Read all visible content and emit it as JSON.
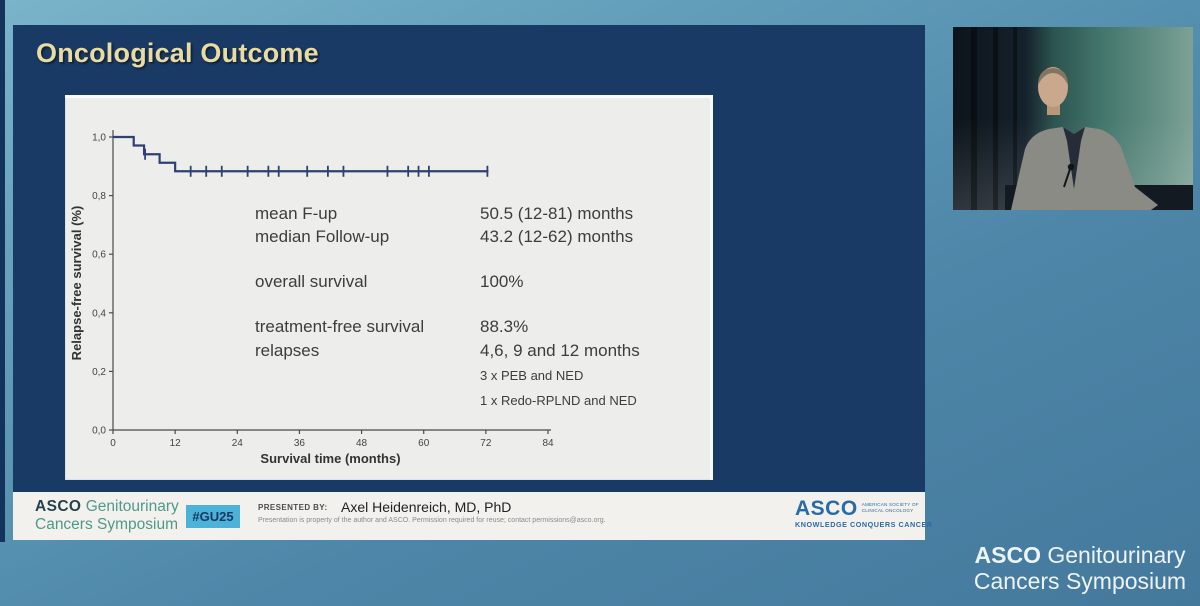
{
  "slide": {
    "title": "Oncological Outcome",
    "stats": [
      {
        "label": "mean F-up",
        "value": "50.5 (12-81) months"
      },
      {
        "label": "median Follow-up",
        "value": "43.2 (12-62) months"
      },
      {
        "label": "overall survival",
        "value": "100%"
      },
      {
        "label": "treatment-free survival",
        "value": "88.3%"
      },
      {
        "label": "relapses",
        "value": "4,6, 9 and 12 months"
      }
    ],
    "notes": [
      "3 x PEB and NED",
      "1 x Redo-RPLND and NED"
    ],
    "footer": {
      "logo_left": {
        "brand": "ASCO",
        "brand_suffix": "Genitourinary",
        "line2": "Cancers Symposium"
      },
      "hashtag": "#GU25",
      "presented_by_label": "PRESENTED BY:",
      "presenter": "Axel Heidenreich, MD, PhD",
      "fine_print": "Presentation is property of the author and ASCO. Permission required for reuse; contact permissions@asco.org.",
      "logo_right": {
        "brand": "ASCO",
        "society_line1": "AMERICAN SOCIETY OF",
        "society_line2": "CLINICAL ONCOLOGY",
        "tagline": "KNOWLEDGE CONQUERS CANCER"
      }
    }
  },
  "chart_data": {
    "type": "line",
    "subtype": "kaplan-meier-step",
    "title": "",
    "xlabel": "Survival time (months)",
    "ylabel": "Relapse-free survival (%)",
    "xlim": [
      0,
      84
    ],
    "ylim": [
      0.0,
      1.0
    ],
    "xticks": [
      0,
      12,
      24,
      36,
      48,
      60,
      72,
      84
    ],
    "xtick_labels": [
      "0",
      "12",
      "24",
      "36",
      "48",
      "60",
      "72",
      "84"
    ],
    "yticks": [
      0.0,
      0.2,
      0.4,
      0.6,
      0.8,
      1.0
    ],
    "ytick_labels": [
      "0,0",
      "0,2",
      "0,4",
      "0,6",
      "0,8",
      "1,0"
    ],
    "grid": false,
    "legend": "none",
    "series": [
      {
        "name": "relapse-free survival",
        "color": "#2e4170",
        "steps": [
          [
            0,
            1.0
          ],
          [
            4,
            1.0
          ],
          [
            4,
            0.971
          ],
          [
            6,
            0.971
          ],
          [
            6,
            0.941
          ],
          [
            9,
            0.941
          ],
          [
            9,
            0.912
          ],
          [
            12,
            0.912
          ],
          [
            12,
            0.883
          ],
          [
            72.5,
            0.883
          ]
        ],
        "censor_marks": [
          [
            6.2,
            0.941
          ],
          [
            15,
            0.883
          ],
          [
            18,
            0.883
          ],
          [
            21,
            0.883
          ],
          [
            26,
            0.883
          ],
          [
            30,
            0.883
          ],
          [
            32,
            0.883
          ],
          [
            37.5,
            0.883
          ],
          [
            41.5,
            0.883
          ],
          [
            44.5,
            0.883
          ],
          [
            53,
            0.883
          ],
          [
            57,
            0.883
          ],
          [
            59,
            0.883
          ],
          [
            61,
            0.883
          ],
          [
            72.3,
            0.883
          ]
        ]
      }
    ]
  },
  "watermark": {
    "brand": "ASCO",
    "brand_suffix": "Genitourinary",
    "line2": "Cancers Symposium"
  },
  "colors": {
    "slide_bg": "#1a3a66",
    "title_text": "#e8dca2",
    "panel_bg": "#ededec",
    "curve": "#2e4170",
    "badge_bg": "#4cb2d9",
    "asco_blue": "#2a6ba6",
    "asco_teal": "#4f988c",
    "footer_bg": "#f2f1ee",
    "backdrop_top": "#7ab4ca",
    "backdrop_bottom": "#44799c"
  }
}
